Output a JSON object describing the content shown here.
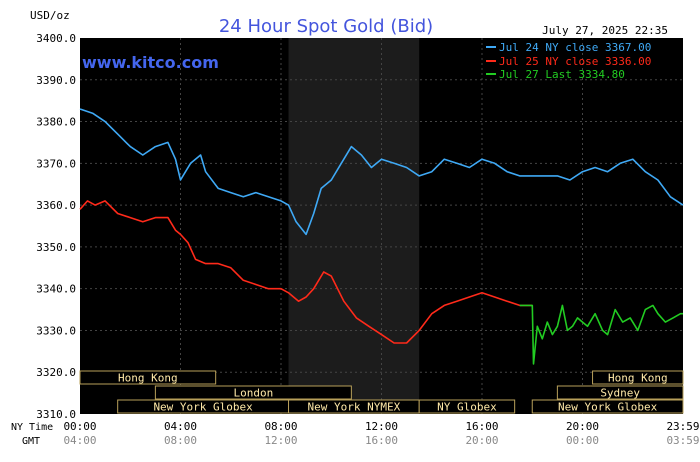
{
  "chart_data": {
    "type": "line",
    "title": "24 Hour Spot Gold (Bid)",
    "watermark": "www.kitco.com",
    "timestamp": "July 27, 2025 22:35",
    "unit_label": "USD/oz",
    "ylim": [
      3310,
      3400
    ],
    "y_ticks": [
      "3400.0",
      "3390.0",
      "3380.0",
      "3370.0",
      "3360.0",
      "3350.0",
      "3340.0",
      "3330.0",
      "3320.0",
      "3310.0"
    ],
    "y_tick_values": [
      3400,
      3390,
      3380,
      3370,
      3360,
      3350,
      3340,
      3330,
      3320,
      3310
    ],
    "xlim": [
      0,
      24
    ],
    "x_row_labels": {
      "ny": "NY Time",
      "gmt": "GMT"
    },
    "x_ticks_ny": [
      "00:00",
      "04:00",
      "08:00",
      "12:00",
      "16:00",
      "20:00",
      "23:59"
    ],
    "x_ticks_gmt": [
      "04:00",
      "08:00",
      "12:00",
      "16:00",
      "20:00",
      "00:00",
      "03:59"
    ],
    "x_tick_hours": [
      0,
      4,
      8,
      12,
      16,
      20,
      24
    ],
    "grid": true,
    "legend_position": "top-right",
    "series": [
      {
        "name": "Jul 24 NY close 3367.00",
        "color": "#3fa9f5",
        "x": [
          0,
          0.5,
          1,
          1.5,
          2,
          2.5,
          3,
          3.5,
          3.8,
          4,
          4.2,
          4.4,
          4.8,
          5,
          5.5,
          6,
          6.5,
          7,
          7.5,
          8,
          8.3,
          8.6,
          9,
          9.3,
          9.6,
          10,
          10.4,
          10.8,
          11.2,
          11.6,
          12,
          12.5,
          13,
          13.5,
          14,
          14.5,
          15,
          15.5,
          16,
          16.5,
          17,
          17.5,
          18,
          18.5,
          19,
          19.5,
          20,
          20.5,
          21,
          21.5,
          22,
          22.5,
          23,
          23.5,
          24
        ],
        "values": [
          3383,
          3382,
          3380,
          3377,
          3374,
          3372,
          3374,
          3375,
          3371,
          3366,
          3368,
          3370,
          3372,
          3368,
          3364,
          3363,
          3362,
          3363,
          3362,
          3361,
          3360,
          3356,
          3353,
          3358,
          3364,
          3366,
          3370,
          3374,
          3372,
          3369,
          3371,
          3370,
          3369,
          3367,
          3368,
          3371,
          3370,
          3369,
          3371,
          3370,
          3368,
          3367,
          3367,
          3367,
          3367,
          3366,
          3368,
          3369,
          3368,
          3370,
          3371,
          3368,
          3366,
          3362,
          3360
        ]
      },
      {
        "name": "Jul 25 NY close 3336.00",
        "color": "#ff2a1a",
        "x": [
          0,
          0.3,
          0.6,
          1,
          1.5,
          2,
          2.5,
          3,
          3.5,
          3.8,
          4,
          4.3,
          4.6,
          5,
          5.5,
          6,
          6.5,
          7,
          7.5,
          8,
          8.3,
          8.7,
          9,
          9.3,
          9.7,
          10,
          10.5,
          11,
          11.5,
          12,
          12.5,
          13,
          13.5,
          14,
          14.5,
          15,
          15.5,
          16,
          16.5,
          17,
          17.5,
          18
        ],
        "values": [
          3359,
          3361,
          3360,
          3361,
          3358,
          3357,
          3356,
          3357,
          3357,
          3354,
          3353,
          3351,
          3347,
          3346,
          3346,
          3345,
          3342,
          3341,
          3340,
          3340,
          3339,
          3337,
          3338,
          3340,
          3344,
          3343,
          3337,
          3333,
          3331,
          3329,
          3327,
          3327,
          3330,
          3334,
          3336,
          3337,
          3338,
          3339,
          3338,
          3337,
          3336,
          3336
        ]
      },
      {
        "name": "Jul 27 Last 3334.80",
        "color": "#22cc22",
        "x": [
          17.5,
          18,
          18.05,
          18.2,
          18.4,
          18.6,
          18.8,
          19,
          19.2,
          19.4,
          19.6,
          19.8,
          20,
          20.2,
          20.5,
          20.8,
          21,
          21.3,
          21.6,
          21.9,
          22.2,
          22.5,
          22.8,
          23,
          23.3,
          23.6,
          23.9,
          24
        ],
        "values": [
          3336,
          3336,
          3322,
          3331,
          3328,
          3332,
          3329,
          3331,
          3336,
          3330,
          3331,
          3333,
          3332,
          3331,
          3334,
          3330,
          3329,
          3335,
          3332,
          3333,
          3330,
          3335,
          3336,
          3334,
          3332,
          3333,
          3334,
          3334
        ]
      }
    ],
    "markets_row1": [
      {
        "name": "Hong Kong",
        "from": 0,
        "to": 5.4
      },
      {
        "name": "Hong Kong",
        "from": 20.4,
        "to": 24
      }
    ],
    "markets_row2": [
      {
        "name": "London",
        "from": 3,
        "to": 10.8
      },
      {
        "name": "Sydney",
        "from": 19,
        "to": 24
      }
    ],
    "markets_row3": [
      {
        "name": "New York Globex",
        "from": 1.5,
        "to": 8.3
      },
      {
        "name": "New York NYMEX",
        "from": 8.3,
        "to": 13.5
      },
      {
        "name": "NY Globex",
        "from": 13.5,
        "to": 17.3
      },
      {
        "name": "New York Globex",
        "from": 18,
        "to": 24
      }
    ]
  }
}
